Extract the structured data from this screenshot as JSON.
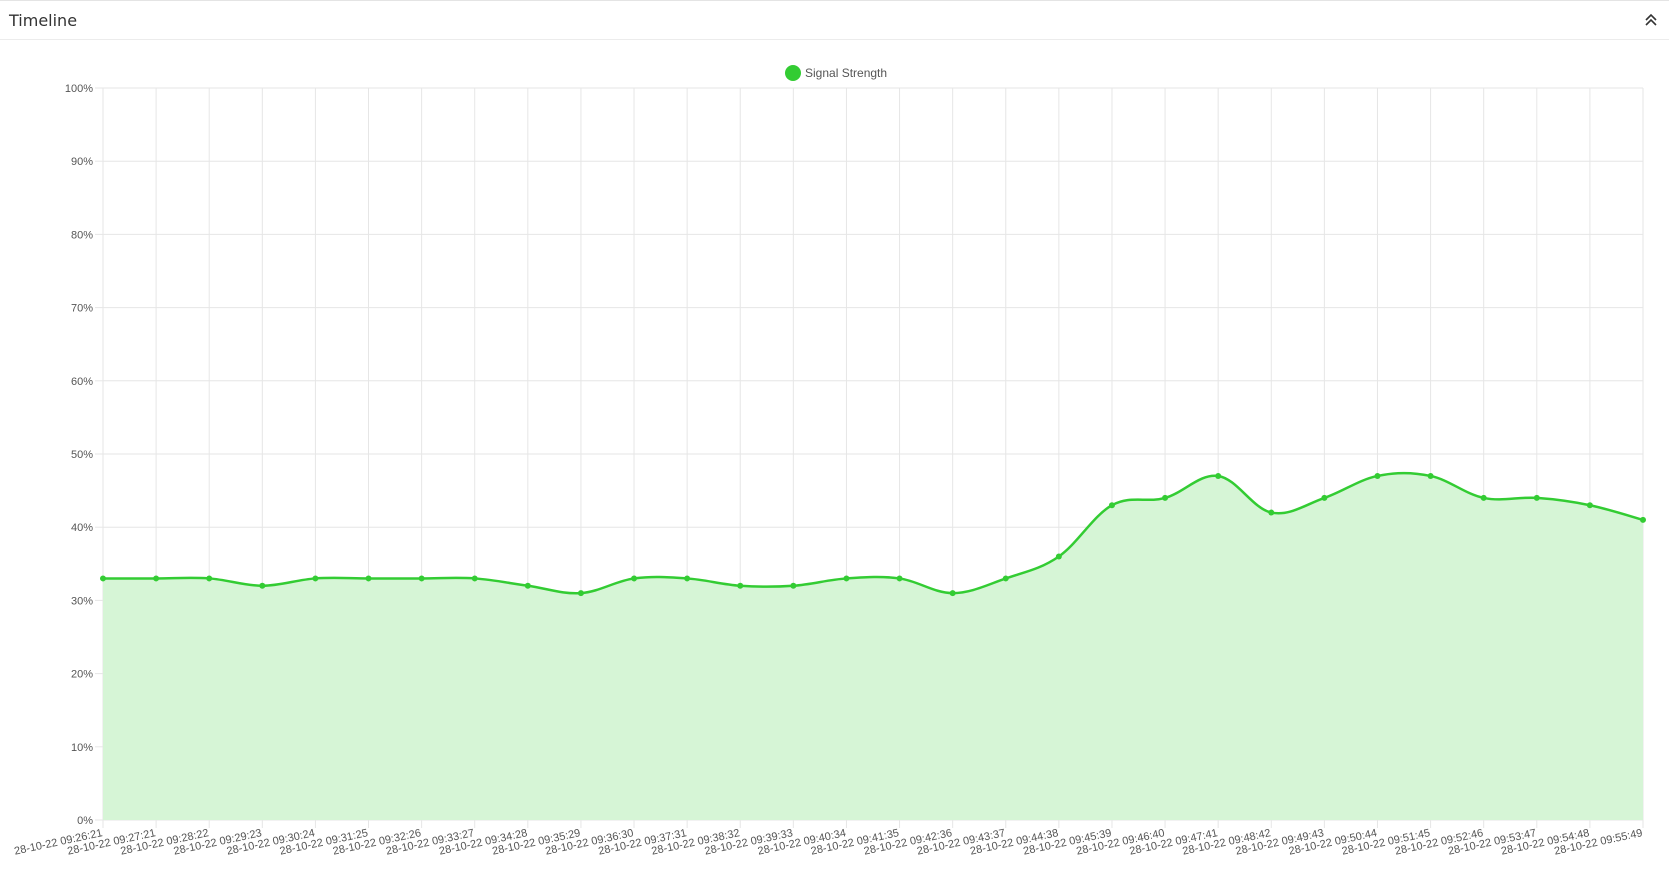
{
  "panel": {
    "title": "Timeline",
    "collapse_icon": "chevron-double-up-icon"
  },
  "chart_data": {
    "type": "area",
    "title": "",
    "xlabel": "",
    "ylabel": "",
    "ylim": [
      0,
      100
    ],
    "y_ticks": [
      "0%",
      "10%",
      "20%",
      "30%",
      "40%",
      "50%",
      "60%",
      "70%",
      "80%",
      "90%",
      "100%"
    ],
    "grid": true,
    "legend_position": "top",
    "series": [
      {
        "name": "Signal Strength",
        "color": "#33cc33",
        "fill_color": "#d6f5d6",
        "values": [
          33,
          33,
          33,
          32,
          33,
          33,
          33,
          33,
          32,
          31,
          33,
          33,
          32,
          32,
          33,
          33,
          31,
          33,
          36,
          43,
          44,
          47,
          42,
          44,
          47,
          47,
          44,
          44,
          43,
          41
        ]
      }
    ],
    "categories": [
      "28-10-22 09:26:21",
      "28-10-22 09:27:21",
      "28-10-22 09:28:22",
      "28-10-22 09:29:23",
      "28-10-22 09:30:24",
      "28-10-22 09:31:25",
      "28-10-22 09:32:26",
      "28-10-22 09:33:27",
      "28-10-22 09:34:28",
      "28-10-22 09:35:29",
      "28-10-22 09:36:30",
      "28-10-22 09:37:31",
      "28-10-22 09:38:32",
      "28-10-22 09:39:33",
      "28-10-22 09:40:34",
      "28-10-22 09:41:35",
      "28-10-22 09:42:36",
      "28-10-22 09:43:37",
      "28-10-22 09:44:38",
      "28-10-22 09:45:39",
      "28-10-22 09:46:40",
      "28-10-22 09:47:41",
      "28-10-22 09:48:42",
      "28-10-22 09:49:43",
      "28-10-22 09:50:44",
      "28-10-22 09:51:45",
      "28-10-22 09:52:46",
      "28-10-22 09:53:47",
      "28-10-22 09:54:48",
      "28-10-22 09:55:49"
    ]
  }
}
